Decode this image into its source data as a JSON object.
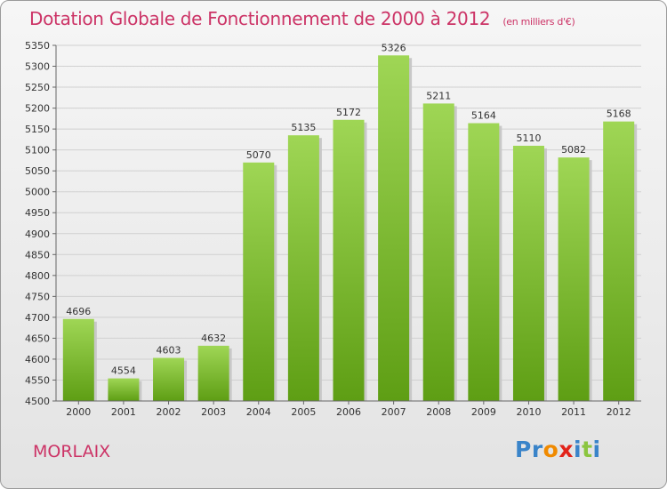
{
  "header": {
    "title": "Dotation Globale de Fonctionnement de 2000 à 2012",
    "subtitle": "(en milliers d'€)"
  },
  "footer": {
    "city": "MORLAIX",
    "logo": "Proxiti"
  },
  "colors": {
    "title": "#cc3366",
    "bar_light": "#9fd655",
    "bar_dark": "#5e9e14"
  },
  "chart_data": {
    "type": "bar",
    "title": "Dotation Globale de Fonctionnement de 2000 à 2012",
    "subtitle": "(en milliers d'€)",
    "categories": [
      "2000",
      "2001",
      "2002",
      "2003",
      "2004",
      "2005",
      "2006",
      "2007",
      "2008",
      "2009",
      "2010",
      "2011",
      "2012"
    ],
    "values": [
      4696,
      4554,
      4603,
      4632,
      5070,
      5135,
      5172,
      5326,
      5211,
      5164,
      5110,
      5082,
      5168
    ],
    "ylim": [
      4500,
      5350
    ],
    "yticks": [
      4500,
      4550,
      4600,
      4650,
      4700,
      4750,
      4800,
      4850,
      4900,
      4950,
      5000,
      5050,
      5100,
      5150,
      5200,
      5250,
      5300,
      5350
    ],
    "grid": true,
    "data_labels": true
  }
}
